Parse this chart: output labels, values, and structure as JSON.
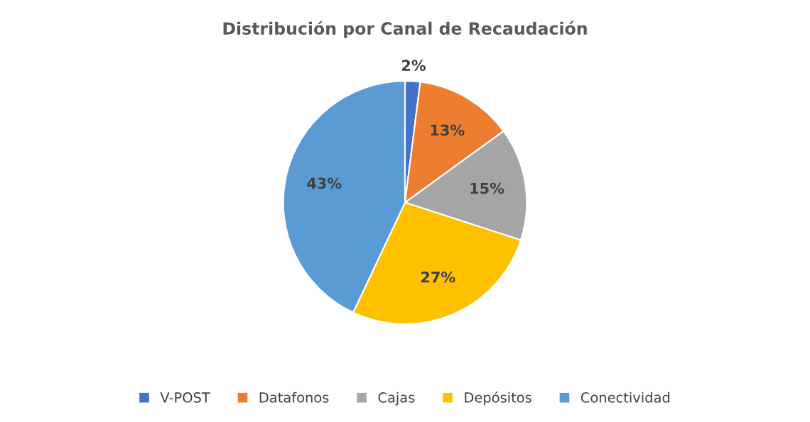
{
  "chart_data": {
    "type": "pie",
    "title": "Distribución por Canal de Recaudación",
    "categories": [
      "V-POST",
      "Datafonos",
      "Cajas",
      "Depósitos",
      "Conectividad"
    ],
    "values": [
      2,
      13,
      15,
      27,
      43
    ],
    "colors": [
      "#4472c4",
      "#ed7d31",
      "#a5a5a5",
      "#ffc000",
      "#5b9bd5"
    ],
    "value_labels": [
      "2%",
      "13%",
      "15%",
      "27%",
      "43%"
    ],
    "legend": "bottom"
  }
}
